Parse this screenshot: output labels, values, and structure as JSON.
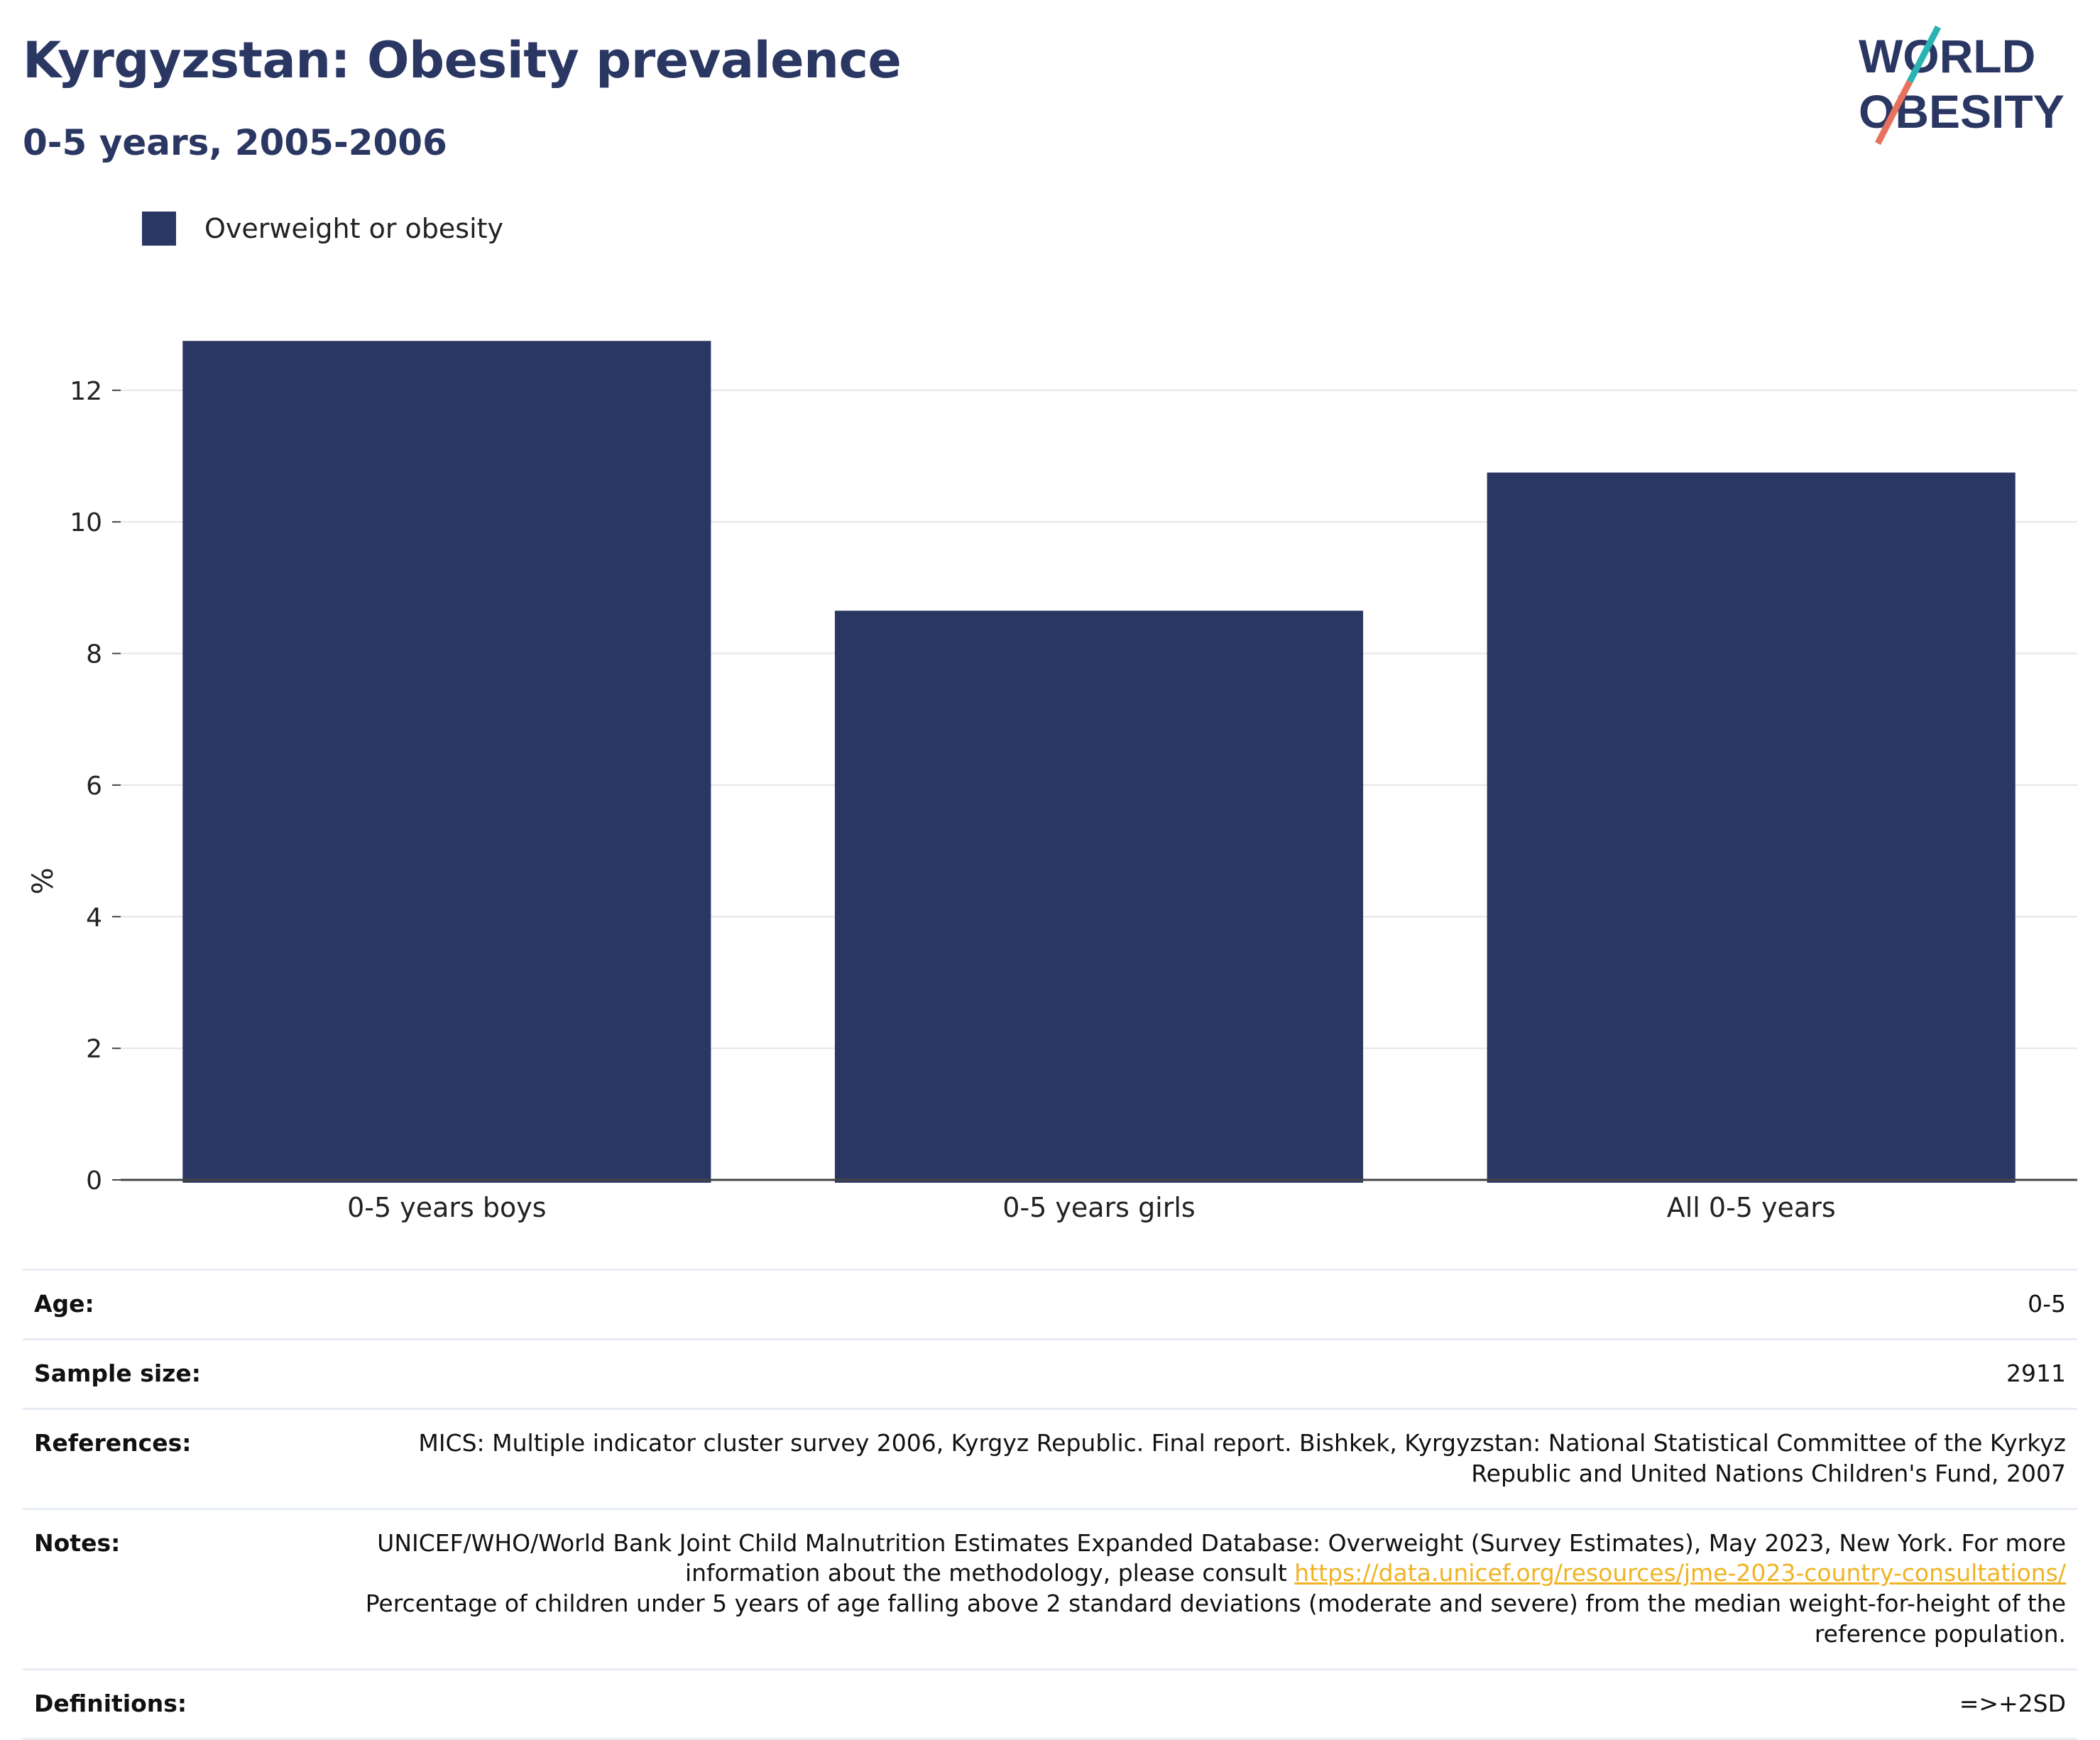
{
  "header": {
    "title": "Kyrgyzstan: Obesity prevalence",
    "subtitle": "0-5 years, 2005-2006",
    "logo_line1": "WORLD",
    "logo_line2": "OBESITY"
  },
  "colors": {
    "bar": "#2b3763",
    "accent_teal": "#2bb3b3",
    "accent_coral": "#e8705e",
    "link": "#f0b323",
    "grid": "#e6e6e6"
  },
  "chart_data": {
    "type": "bar",
    "categories": [
      "0-5 years boys",
      "0-5 years girls",
      "All 0-5 years"
    ],
    "series": [
      {
        "name": "Overweight or obesity",
        "values": [
          12.75,
          8.65,
          10.75
        ]
      }
    ],
    "ylabel": "%",
    "xlabel": "",
    "ylim": [
      0,
      13.4
    ],
    "yticks": [
      0,
      2,
      4,
      6,
      8,
      10,
      12
    ],
    "grid": true,
    "legend": "top-left"
  },
  "meta": {
    "age_label": "Age:",
    "age_value": "0-5",
    "sample_label": "Sample size:",
    "sample_value": "2911",
    "references_label": "References:",
    "references_value": "MICS: Multiple indicator cluster survey 2006, Kyrgyz Republic. Final report. Bishkek, Kyrgyzstan: National Statistical Committee of the Kyrkyz Republic and United Nations Children's Fund, 2007",
    "notes_label": "Notes:",
    "notes_text1": "UNICEF/WHO/World Bank Joint Child Malnutrition Estimates Expanded Database: Overweight (Survey Estimates), May 2023, New York. For more information about the methodology, please consult",
    "notes_link": "https://data.unicef.org/resources/jme-2023-country-consultations/",
    "notes_text2": "Percentage of children under 5 years of age falling above 2 standard deviations (moderate and severe) from the median weight-for-height of the reference population.",
    "definitions_label": "Definitions:",
    "definitions_value": "=>+2SD"
  }
}
